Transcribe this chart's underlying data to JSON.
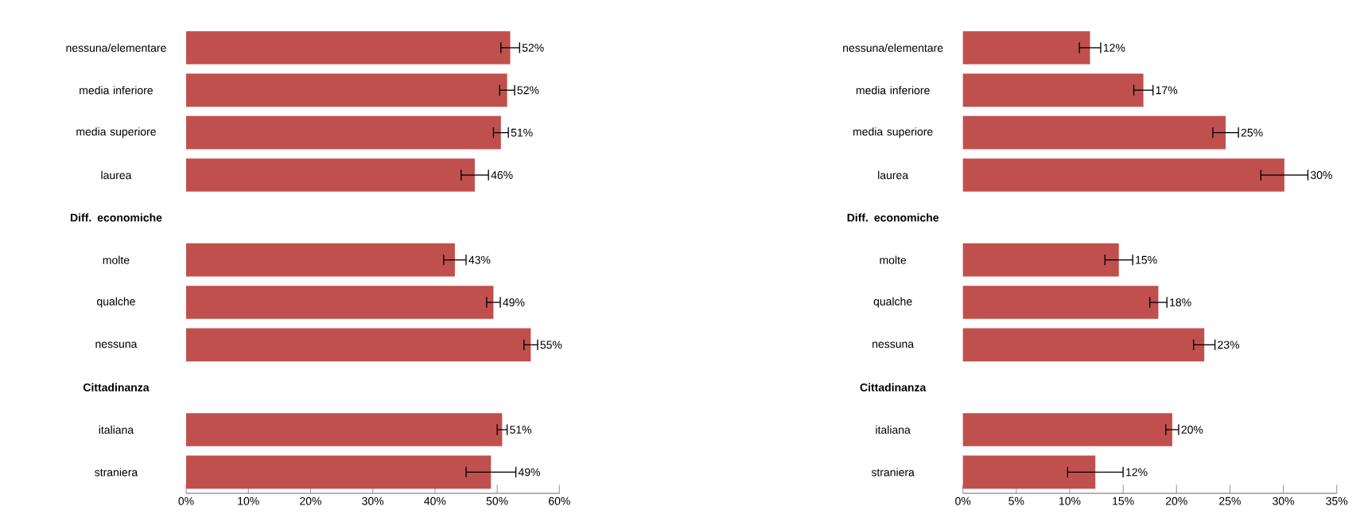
{
  "chart_data": [
    {
      "type": "bar",
      "orientation": "horizontal",
      "color": "#c0504d",
      "categories": [
        "nessuna/elementare",
        "media inferiore",
        "media superiore",
        "laurea",
        "Diff. economiche",
        "molte",
        "qualche",
        "nessuna",
        "Cittadinanza",
        "italiana",
        "straniera"
      ],
      "values": [
        52.1,
        51.6,
        50.6,
        46.4,
        null,
        43.2,
        49.4,
        55.4,
        null,
        50.8,
        49.0
      ],
      "errors": [
        1.5,
        1.2,
        1.2,
        2.2,
        null,
        1.8,
        1.1,
        1.1,
        null,
        0.8,
        4.0
      ],
      "value_labels": [
        "52%",
        "52%",
        "51%",
        "46%",
        null,
        "43%",
        "49%",
        "55%",
        null,
        "51%",
        "49%"
      ],
      "xlim": [
        0,
        60
      ],
      "xticks": [
        {
          "value": 0,
          "label": "0%"
        },
        {
          "value": 10,
          "label": "10%"
        },
        {
          "value": 20,
          "label": "20%"
        },
        {
          "value": 30,
          "label": "30%"
        },
        {
          "value": 40,
          "label": "40%"
        },
        {
          "value": 50,
          "label": "50%"
        },
        {
          "value": 60,
          "label": "60%"
        }
      ]
    },
    {
      "type": "bar",
      "orientation": "horizontal",
      "color": "#c0504d",
      "categories": [
        "nessuna/elementare",
        "media inferiore",
        "media superiore",
        "laurea",
        "Diff. economiche",
        "molte",
        "qualche",
        "nessuna",
        "Cittadinanza",
        "italiana",
        "straniera"
      ],
      "values": [
        11.9,
        16.9,
        24.6,
        30.1,
        null,
        14.6,
        18.3,
        22.6,
        null,
        19.6,
        12.4
      ],
      "errors": [
        1.0,
        0.9,
        1.2,
        2.2,
        null,
        1.3,
        0.8,
        1.0,
        null,
        0.6,
        2.6
      ],
      "value_labels": [
        "12%",
        "17%",
        "25%",
        "30%",
        null,
        "15%",
        "18%",
        "23%",
        null,
        "20%",
        "12%"
      ],
      "xlim": [
        0,
        35
      ],
      "xticks": [
        {
          "value": 0,
          "label": "0%"
        },
        {
          "value": 5,
          "label": "5%"
        },
        {
          "value": 10,
          "label": "10%"
        },
        {
          "value": 15,
          "label": "15%"
        },
        {
          "value": 20,
          "label": "20%"
        },
        {
          "value": 25,
          "label": "25%"
        },
        {
          "value": 30,
          "label": "30%"
        },
        {
          "value": 35,
          "label": "35%"
        }
      ]
    }
  ]
}
